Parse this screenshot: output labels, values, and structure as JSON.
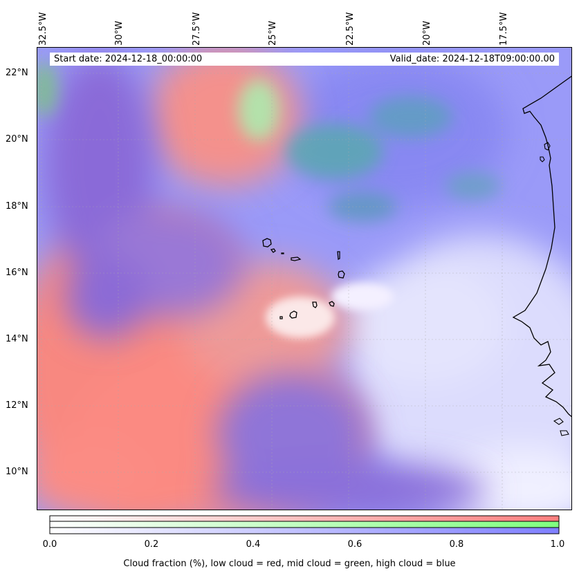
{
  "header": {
    "start_date": "Start date: 2024-12-18_00:00:00",
    "valid_date": "Valid_date: 2024-12-18T09:00:00.00"
  },
  "axes": {
    "longitude_labels": [
      "32.5°W",
      "30°W",
      "27.5°W",
      "25°W",
      "22.5°W",
      "20°W",
      "17.5°W"
    ],
    "latitude_labels": [
      "22°N",
      "20°N",
      "18°N",
      "16°N",
      "14°N",
      "12°N",
      "10°N"
    ]
  },
  "legend": {
    "title": "Cloud fraction (%), low cloud = red, mid cloud = green, high cloud = blue",
    "ticks": [
      "0.0",
      "0.2",
      "0.4",
      "0.6",
      "0.8",
      "1.0"
    ],
    "colors": {
      "low": "#ff7f7f",
      "mid": "#7fff7f",
      "high": "#7f7fff"
    }
  }
}
